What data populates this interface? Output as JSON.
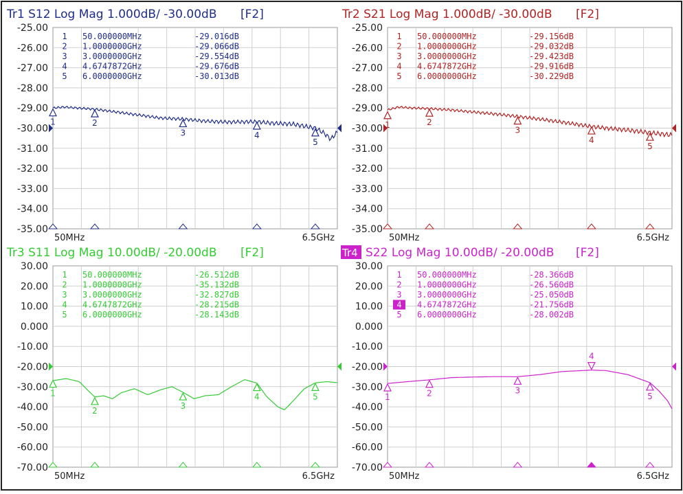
{
  "chart_data": [
    {
      "type": "line",
      "trace": "Tr1",
      "title": "Tr1 S12 Log Mag 1.000dB/ -30.00dB",
      "tag": "[F2]",
      "color": "#1f2d8a",
      "ylim": [
        -35,
        -25
      ],
      "ytick_labels": [
        "-25.00",
        "-26.00",
        "-27.00",
        "-28.00",
        "-29.00",
        "-30.00",
        "-31.00",
        "-32.00",
        "-33.00",
        "-34.00",
        "-35.00"
      ],
      "xlim_ghz": [
        0.05,
        6.5
      ],
      "xstart_label": "50MHz",
      "xstop_label": "6.5GHz",
      "reference_level": -30,
      "active_marker": null,
      "markers": [
        {
          "n": "1",
          "freq_label": "50.000000MHz",
          "value_label": "-29.016dB",
          "x": 0.05,
          "y": -29.016
        },
        {
          "n": "2",
          "freq_label": "1.0000000GHz",
          "value_label": "-29.066dB",
          "x": 1.0,
          "y": -29.066
        },
        {
          "n": "3",
          "freq_label": "3.0000000GHz",
          "value_label": "-29.554dB",
          "x": 3.0,
          "y": -29.554
        },
        {
          "n": "4",
          "freq_label": "4.6747872GHz",
          "value_label": "-29.676dB",
          "x": 4.6747872,
          "y": -29.676
        },
        {
          "n": "5",
          "freq_label": "6.0000000GHz",
          "value_label": "-30.013dB",
          "x": 6.0,
          "y": -30.013
        }
      ],
      "x": [
        0.05,
        0.3,
        0.6,
        1.0,
        1.5,
        2.0,
        2.5,
        3.0,
        3.5,
        4.0,
        4.675,
        5.0,
        5.5,
        6.0,
        6.2,
        6.35,
        6.5
      ],
      "y": [
        -29.0,
        -28.95,
        -29.0,
        -29.06,
        -29.2,
        -29.35,
        -29.5,
        -29.55,
        -29.65,
        -29.7,
        -29.68,
        -29.75,
        -29.8,
        -30.0,
        -30.25,
        -30.55,
        -30.2
      ],
      "ripple": 0.12
    },
    {
      "type": "line",
      "trace": "Tr2",
      "title": "Tr2 S21 Log Mag 1.000dB/ -30.00dB",
      "tag": "[F2]",
      "color": "#b22222",
      "ylim": [
        -35,
        -25
      ],
      "ytick_labels": [
        "-25.00",
        "-26.00",
        "-27.00",
        "-28.00",
        "-29.00",
        "-30.00",
        "-31.00",
        "-32.00",
        "-33.00",
        "-34.00",
        "-35.00"
      ],
      "xlim_ghz": [
        0.05,
        6.5
      ],
      "xstart_label": "50MHz",
      "xstop_label": "6.5GHz",
      "reference_level": -30,
      "active_marker": null,
      "markers": [
        {
          "n": "1",
          "freq_label": "50.000000MHz",
          "value_label": "-29.156dB",
          "x": 0.05,
          "y": -29.156
        },
        {
          "n": "2",
          "freq_label": "1.0000000GHz",
          "value_label": "-29.032dB",
          "x": 1.0,
          "y": -29.032
        },
        {
          "n": "3",
          "freq_label": "3.0000000GHz",
          "value_label": "-29.423dB",
          "x": 3.0,
          "y": -29.423
        },
        {
          "n": "4",
          "freq_label": "4.6747872GHz",
          "value_label": "-29.916dB",
          "x": 4.6747872,
          "y": -29.916
        },
        {
          "n": "5",
          "freq_label": "6.0000000GHz",
          "value_label": "-30.229dB",
          "x": 6.0,
          "y": -30.229
        }
      ],
      "x": [
        0.05,
        0.3,
        0.6,
        1.0,
        1.5,
        2.0,
        2.5,
        3.0,
        3.5,
        4.0,
        4.675,
        5.0,
        5.5,
        6.0,
        6.3,
        6.5
      ],
      "y": [
        -29.1,
        -28.95,
        -29.0,
        -29.03,
        -29.1,
        -29.2,
        -29.3,
        -29.42,
        -29.55,
        -29.7,
        -29.92,
        -30.0,
        -30.1,
        -30.23,
        -30.3,
        -30.35
      ],
      "ripple": 0.12
    },
    {
      "type": "line",
      "trace": "Tr3",
      "title": "Tr3 S11 Log Mag 10.00dB/ -20.00dB",
      "tag": "[F2]",
      "color": "#33cc33",
      "ylim": [
        -70,
        30
      ],
      "ytick_labels": [
        "30.00",
        "20.00",
        "10.00",
        "0.000",
        "-10.00",
        "-20.00",
        "-30.00",
        "-40.00",
        "-50.00",
        "-60.00",
        "-70.00"
      ],
      "xlim_ghz": [
        0.05,
        6.5
      ],
      "xstart_label": "50MHz",
      "xstop_label": "6.5GHz",
      "reference_level": -20,
      "active_marker": null,
      "markers": [
        {
          "n": "1",
          "freq_label": "50.000000MHz",
          "value_label": "-26.512dB",
          "x": 0.05,
          "y": -26.512
        },
        {
          "n": "2",
          "freq_label": "1.0000000GHz",
          "value_label": "-35.132dB",
          "x": 1.0,
          "y": -35.132
        },
        {
          "n": "3",
          "freq_label": "3.0000000GHz",
          "value_label": "-32.827dB",
          "x": 3.0,
          "y": -32.827
        },
        {
          "n": "4",
          "freq_label": "4.6747872GHz",
          "value_label": "-28.215dB",
          "x": 4.6747872,
          "y": -28.215
        },
        {
          "n": "5",
          "freq_label": "6.0000000GHz",
          "value_label": "-28.143dB",
          "x": 6.0,
          "y": -28.143
        }
      ],
      "x": [
        0.05,
        0.35,
        0.65,
        0.85,
        1.0,
        1.2,
        1.4,
        1.6,
        1.9,
        2.2,
        2.5,
        2.75,
        3.0,
        3.25,
        3.5,
        3.8,
        4.1,
        4.4,
        4.675,
        4.9,
        5.15,
        5.3,
        5.5,
        5.75,
        6.0,
        6.25,
        6.5
      ],
      "y": [
        -27.0,
        -26.0,
        -27.5,
        -32.0,
        -35.1,
        -34.5,
        -36.0,
        -33.0,
        -31.0,
        -34.0,
        -31.5,
        -30.0,
        -32.8,
        -36.0,
        -34.5,
        -34.0,
        -30.0,
        -26.5,
        -28.2,
        -35.0,
        -40.0,
        -41.5,
        -37.0,
        -31.0,
        -28.1,
        -27.5,
        -28.0
      ],
      "ripple": 0
    },
    {
      "type": "line",
      "trace": "Tr4",
      "title": "S22 Log Mag 10.00dB/ -20.00dB",
      "title_badge": "Tr4",
      "tag": "[F2]",
      "color": "#cc22cc",
      "ylim": [
        -70,
        30
      ],
      "ytick_labels": [
        "30.00",
        "20.00",
        "10.00",
        "0.000",
        "-10.00",
        "-20.00",
        "-30.00",
        "-40.00",
        "-50.00",
        "-60.00",
        "-70.00"
      ],
      "xlim_ghz": [
        0.05,
        6.5
      ],
      "xstart_label": "50MHz",
      "xstop_label": "6.5GHz",
      "reference_level": -20,
      "active_marker": "4",
      "markers": [
        {
          "n": "1",
          "freq_label": "50.000000MHz",
          "value_label": "-28.366dB",
          "x": 0.05,
          "y": -28.366
        },
        {
          "n": "2",
          "freq_label": "1.0000000GHz",
          "value_label": "-26.560dB",
          "x": 1.0,
          "y": -26.56
        },
        {
          "n": "3",
          "freq_label": "3.0000000GHz",
          "value_label": "-25.050dB",
          "x": 3.0,
          "y": -25.05
        },
        {
          "n": "4",
          "freq_label": "4.6747872GHz",
          "value_label": "-21.756dB",
          "x": 4.6747872,
          "y": -21.756
        },
        {
          "n": "5",
          "freq_label": "6.0000000GHz",
          "value_label": "-28.002dB",
          "x": 6.0,
          "y": -28.002
        }
      ],
      "x": [
        0.05,
        0.5,
        1.0,
        1.5,
        2.0,
        2.5,
        3.0,
        3.5,
        4.0,
        4.675,
        5.0,
        5.5,
        6.0,
        6.2,
        6.4,
        6.5
      ],
      "y": [
        -28.4,
        -27.5,
        -26.6,
        -25.5,
        -25.2,
        -25.0,
        -25.05,
        -24.0,
        -22.5,
        -21.76,
        -22.0,
        -24.0,
        -28.0,
        -32.0,
        -37.0,
        -41.0
      ],
      "ripple": 0
    }
  ]
}
